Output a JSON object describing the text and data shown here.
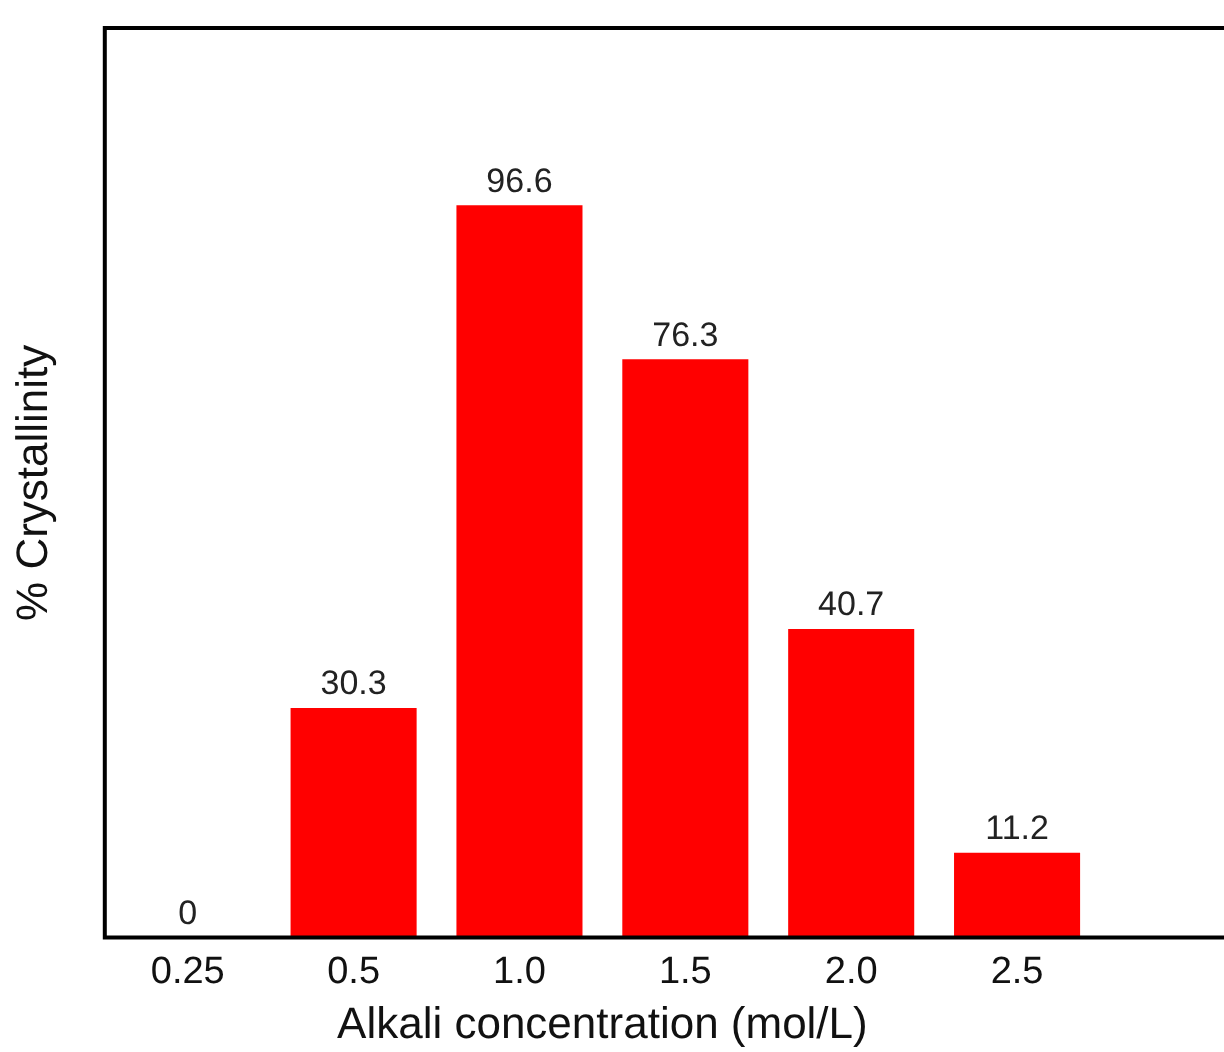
{
  "chart_data": {
    "type": "bar",
    "categories": [
      "0.25",
      "0.5",
      "1.0",
      "1.5",
      "2.0",
      "2.5"
    ],
    "values": [
      0,
      30.3,
      96.6,
      76.3,
      40.7,
      11.2
    ],
    "color": "#ff0000",
    "xlabel": "Alkali concentration (mol/L)",
    "ylabel": "% Crystallinity",
    "data_labels": true,
    "grid": false,
    "legend": false
  }
}
